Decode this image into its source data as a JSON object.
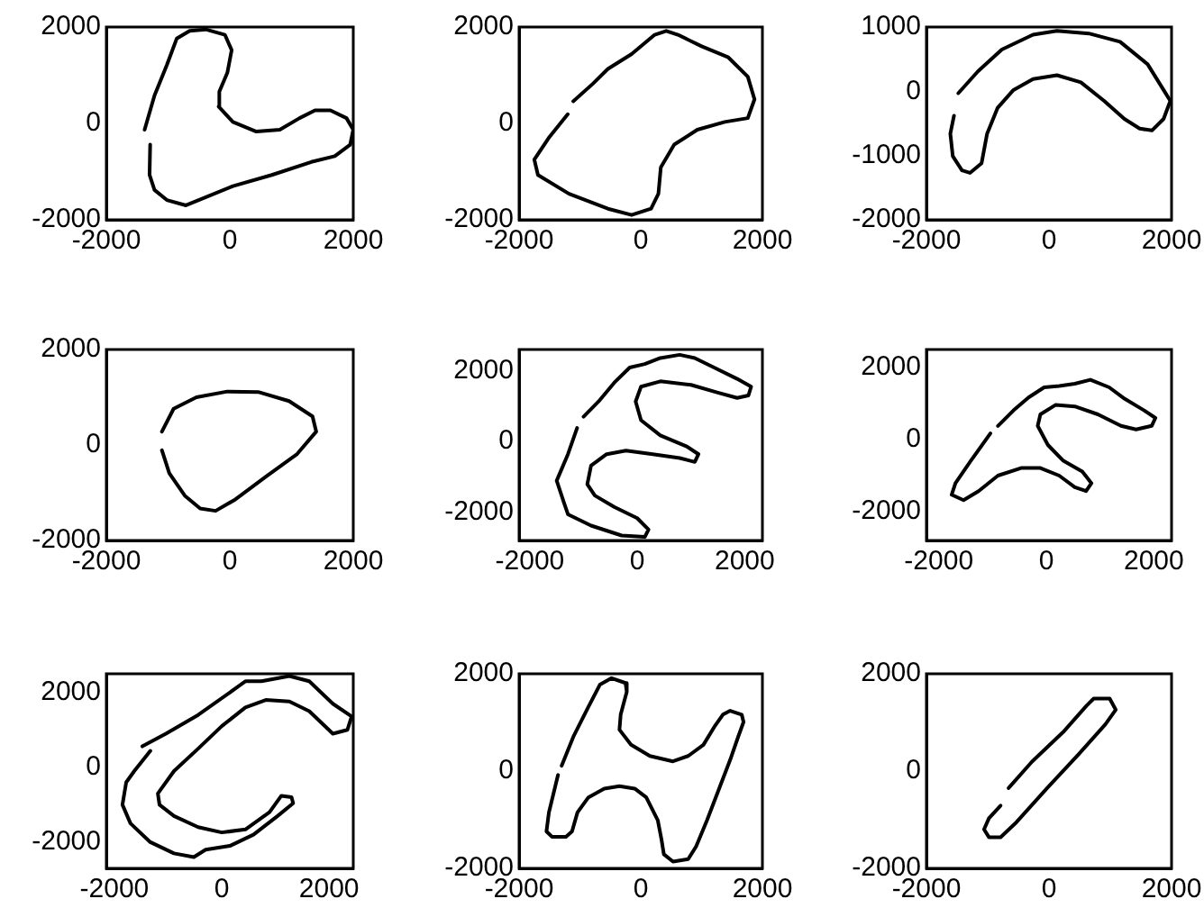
{
  "chart_data": [
    {
      "type": "line",
      "color": "#000000",
      "xlim": [
        -2000,
        2000
      ],
      "ylim": [
        -2000,
        2000
      ],
      "xticks": [
        -2000,
        0,
        2000
      ],
      "yticks": [
        -2000,
        0,
        2000
      ],
      "x": [
        -1290,
        -1300,
        -1220,
        -1020,
        -710,
        50,
        680,
        1320,
        1700,
        1950,
        2000,
        1890,
        1630,
        1380,
        1130,
        810,
        430,
        50,
        -180,
        -170,
        -40,
        30,
        -80,
        -390,
        -650,
        -860,
        -1020,
        -1220,
        -1380
      ],
      "values": [
        -440,
        -1070,
        -1380,
        -1590,
        -1700,
        -1300,
        -1070,
        -800,
        -680,
        -440,
        -130,
        110,
        270,
        270,
        110,
        -130,
        -170,
        30,
        350,
        660,
        1050,
        1520,
        1840,
        1950,
        1920,
        1760,
        1210,
        580,
        -130
      ]
    },
    {
      "type": "line",
      "color": "#000000",
      "xlim": [
        -2000,
        2000
      ],
      "ylim": [
        -2000,
        2000
      ],
      "xticks": [
        -2000,
        0,
        2000
      ],
      "yticks": [
        -2000,
        0,
        2000
      ],
      "x": [
        -1200,
        -1500,
        -1750,
        -1690,
        -1180,
        -540,
        -150,
        170,
        290,
        330,
        550,
        930,
        1380,
        1760,
        1870,
        1760,
        1440,
        1000,
        610,
        420,
        230,
        -150,
        -540,
        -790,
        -1110
      ],
      "values": [
        190,
        -280,
        -750,
        -1070,
        -1460,
        -1770,
        -1900,
        -1770,
        -1460,
        -910,
        -440,
        -130,
        30,
        110,
        500,
        970,
        1370,
        1600,
        1840,
        1920,
        1840,
        1440,
        1130,
        820,
        460
      ]
    },
    {
      "type": "line",
      "color": "#000000",
      "xlim": [
        -2000,
        2000
      ],
      "ylim": [
        -2000,
        1000
      ],
      "xticks": [
        -2000,
        0,
        2000
      ],
      "yticks": [
        -2000,
        -1000,
        0,
        1000
      ],
      "x": [
        -1480,
        -1160,
        -770,
        -260,
        130,
        650,
        1160,
        1610,
        1870,
        1980,
        1870,
        1680,
        1480,
        1230,
        900,
        520,
        130,
        -260,
        -580,
        -840,
        -1010,
        -1100,
        -1290,
        -1420,
        -1570,
        -1610,
        -1550
      ],
      "values": [
        -30,
        310,
        650,
        880,
        940,
        900,
        770,
        420,
        20,
        -150,
        -430,
        -610,
        -580,
        -430,
        -150,
        140,
        250,
        190,
        20,
        -260,
        -660,
        -1120,
        -1270,
        -1230,
        -1010,
        -660,
        -380
      ]
    },
    {
      "type": "line",
      "color": "#000000",
      "xlim": [
        -2000,
        2000
      ],
      "ylim": [
        -2000,
        2000
      ],
      "xticks": [
        -2000,
        0,
        2000
      ],
      "yticks": [
        -2000,
        0,
        2000
      ],
      "x": [
        -1100,
        -980,
        -730,
        -480,
        -230,
        90,
        590,
        1090,
        1400,
        1340,
        960,
        460,
        -40,
        -540,
        -910,
        -1100
      ],
      "values": [
        -110,
        -590,
        -1060,
        -1330,
        -1380,
        -1140,
        -660,
        -190,
        280,
        600,
        920,
        1110,
        1120,
        1000,
        760,
        280
      ]
    },
    {
      "type": "line",
      "color": "#000000",
      "xlim": [
        -2200,
        2330
      ],
      "ylim": [
        -2800,
        2600
      ],
      "xticks": [
        -2000,
        0,
        2000
      ],
      "yticks": [
        -2000,
        0,
        2000
      ],
      "x": [
        -1120,
        -1290,
        -1500,
        -1360,
        -1290,
        -860,
        -290,
        140,
        210,
        0,
        -430,
        -790,
        -930,
        -860,
        -570,
        -210,
        290,
        790,
        1070,
        1140,
        930,
        430,
        70,
        -30,
        70,
        430,
        1000,
        1500,
        1860,
        2070,
        2120,
        1860,
        1430,
        1070,
        790,
        430,
        140,
        -140,
        -430,
        -720,
        -1000
      ],
      "values": [
        380,
        -360,
        -1110,
        -1750,
        -2060,
        -2380,
        -2660,
        -2700,
        -2490,
        -2170,
        -1850,
        -1530,
        -1210,
        -680,
        -360,
        -260,
        -360,
        -470,
        -580,
        -360,
        -150,
        170,
        600,
        1130,
        1550,
        1700,
        1600,
        1380,
        1230,
        1300,
        1550,
        1770,
        2090,
        2360,
        2450,
        2360,
        2190,
        2090,
        1660,
        1130,
        700
      ]
    },
    {
      "type": "line",
      "color": "#000000",
      "xlim": [
        -2230,
        2330
      ],
      "ylim": [
        -2800,
        2500
      ],
      "xticks": [
        -2000,
        0,
        2000
      ],
      "yticks": [
        -2000,
        0,
        2000
      ],
      "x": [
        -1040,
        -1400,
        -1690,
        -1760,
        -1540,
        -1260,
        -900,
        -470,
        -110,
        240,
        530,
        740,
        840,
        670,
        310,
        30,
        -160,
        -110,
        170,
        530,
        960,
        1390,
        1670,
        1960,
        2030,
        1820,
        1460,
        1170,
        820,
        530,
        240,
        -40,
        -330,
        -610,
        -900
      ],
      "values": [
        170,
        -580,
        -1210,
        -1530,
        -1680,
        -1430,
        -1000,
        -790,
        -790,
        -1000,
        -1320,
        -1430,
        -1210,
        -890,
        -580,
        -150,
        380,
        700,
        960,
        920,
        700,
        380,
        280,
        380,
        600,
        810,
        1130,
        1450,
        1660,
        1550,
        1490,
        1450,
        1170,
        810,
        380
      ]
    },
    {
      "type": "line",
      "color": "#000000",
      "xlim": [
        -2150,
        2450
      ],
      "ylim": [
        -2700,
        2500
      ],
      "xticks": [
        -2000,
        0,
        2000
      ],
      "yticks": [
        -2000,
        0,
        2000
      ],
      "x": [
        -1480,
        -1040,
        -440,
        150,
        440,
        740,
        1260,
        1630,
        2070,
        2420,
        2340,
        2070,
        1630,
        1260,
        820,
        440,
        0,
        -440,
        -890,
        -1190,
        -1160,
        -890,
        -440,
        0,
        440,
        890,
        1110,
        1300,
        1330,
        1040,
        590,
        150,
        -300,
        -520,
        -890,
        -1330,
        -1700,
        -1850,
        -1780,
        -1630,
        -1330
      ],
      "values": [
        560,
        900,
        1400,
        2000,
        2300,
        2300,
        2440,
        2300,
        1700,
        1360,
        1000,
        900,
        1500,
        1760,
        1800,
        1600,
        1100,
        500,
        -100,
        -700,
        -1000,
        -1300,
        -1600,
        -1740,
        -1660,
        -1200,
        -760,
        -800,
        -960,
        -1300,
        -1800,
        -2100,
        -2200,
        -2400,
        -2300,
        -2000,
        -1500,
        -1000,
        -400,
        -100,
        440
      ]
    },
    {
      "type": "line",
      "color": "#000000",
      "xlim": [
        -2000,
        2000
      ],
      "ylim": [
        -2000,
        2000
      ],
      "xticks": [
        -2000,
        0,
        2000
      ],
      "yticks": [
        -2000,
        0,
        2000
      ],
      "x": [
        -1300,
        -1110,
        -860,
        -670,
        -480,
        -250,
        -230,
        -330,
        -350,
        -160,
        150,
        530,
        780,
        1030,
        1220,
        1350,
        1470,
        1660,
        1690,
        1600,
        1470,
        1280,
        1090,
        910,
        780,
        530,
        380,
        340,
        280,
        90,
        -100,
        -350,
        -600,
        -860,
        -1040,
        -1130,
        -1230,
        -1460,
        -1550,
        -1510,
        -1420,
        -1360
      ],
      "values": [
        110,
        700,
        1320,
        1780,
        1910,
        1810,
        1630,
        1160,
        850,
        540,
        310,
        200,
        310,
        540,
        930,
        1160,
        1240,
        1160,
        1010,
        700,
        230,
        -390,
        -1010,
        -1550,
        -1810,
        -1860,
        -1710,
        -1400,
        -1010,
        -540,
        -360,
        -310,
        -360,
        -540,
        -850,
        -1240,
        -1350,
        -1350,
        -1240,
        -850,
        -390,
        -80
      ]
    },
    {
      "type": "line",
      "color": "#000000",
      "xlim": [
        -2000,
        2000
      ],
      "ylim": [
        -2000,
        2000
      ],
      "xticks": [
        -2000,
        0,
        2000
      ],
      "yticks": [
        -2000,
        0,
        2000
      ],
      "x": [
        -660,
        -280,
        230,
        610,
        730,
        990,
        1090,
        920,
        480,
        -30,
        -530,
        -790,
        -980,
        -1060,
        -980,
        -790
      ],
      "values": [
        -350,
        190,
        800,
        1340,
        1490,
        1490,
        1260,
        960,
        340,
        -350,
        -1050,
        -1360,
        -1360,
        -1200,
        -970,
        -710
      ]
    }
  ]
}
